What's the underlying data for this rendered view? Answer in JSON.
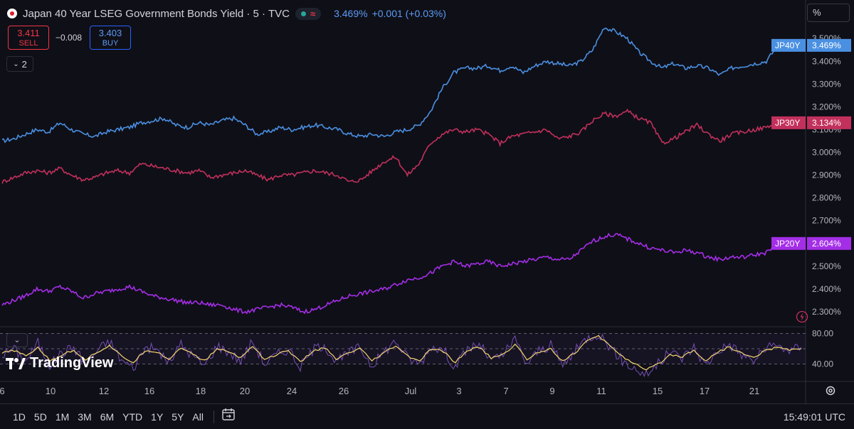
{
  "header": {
    "title": "Japan 40 Year LSEG Government Bonds Yield · 5 · TVC",
    "price": "3.469%",
    "change": "+0.001 (+0.03%)",
    "status_icons": [
      "market-open-dot",
      "delayed-data-wave"
    ]
  },
  "trade": {
    "sell_price": "3.411",
    "sell_label": "SELL",
    "spread": "−0.008",
    "buy_price": "3.403",
    "buy_label": "BUY"
  },
  "indicators_toggle": "2",
  "scale_mode": "%",
  "logo_text": "TradingView",
  "colors": {
    "jp40y": "#4a90e2",
    "jp30y": "#c2305c",
    "jp20y": "#a42ee8",
    "osc": "#7e57c2",
    "osc_signal": "#f5d76e",
    "background": "#0f0f17"
  },
  "chart_data": [
    {
      "type": "line",
      "y_ticks": [
        "3.500%",
        "3.400%",
        "3.300%",
        "3.200%",
        "3.100%",
        "3.000%",
        "2.900%",
        "2.800%",
        "2.700%",
        "2.600%",
        "2.500%",
        "2.400%",
        "2.300%"
      ],
      "ylim": [
        2.25,
        3.56
      ],
      "x_ticks": [
        "6",
        "10",
        "12",
        "16",
        "18",
        "20",
        "24",
        "26",
        "Jul",
        "3",
        "7",
        "9",
        "11",
        "15",
        "17",
        "21"
      ],
      "series": [
        {
          "name": "JP40Y",
          "last_label": "3.469%",
          "values": [
            3.05,
            3.06,
            3.08,
            3.1,
            3.09,
            3.13,
            3.1,
            3.08,
            3.07,
            3.09,
            3.1,
            3.11,
            3.13,
            3.14,
            3.15,
            3.12,
            3.11,
            3.13,
            3.12,
            3.14,
            3.15,
            3.12,
            3.08,
            3.09,
            3.11,
            3.1,
            3.11,
            3.12,
            3.11,
            3.1,
            3.08,
            3.07,
            3.08,
            3.07,
            3.09,
            3.1,
            3.12,
            3.18,
            3.28,
            3.35,
            3.37,
            3.37,
            3.38,
            3.36,
            3.38,
            3.35,
            3.38,
            3.4,
            3.39,
            3.38,
            3.4,
            3.45,
            3.55,
            3.53,
            3.5,
            3.44,
            3.4,
            3.37,
            3.39,
            3.37,
            3.38,
            3.37,
            3.34,
            3.37,
            3.38,
            3.39,
            3.4,
            3.47
          ]
        },
        {
          "name": "JP30Y",
          "last_label": "3.134%",
          "values": [
            2.87,
            2.89,
            2.91,
            2.92,
            2.91,
            2.93,
            2.9,
            2.88,
            2.89,
            2.91,
            2.92,
            2.91,
            2.95,
            2.94,
            2.93,
            2.92,
            2.91,
            2.92,
            2.89,
            2.9,
            2.91,
            2.92,
            2.9,
            2.88,
            2.9,
            2.9,
            2.91,
            2.92,
            2.91,
            2.9,
            2.87,
            2.88,
            2.92,
            2.96,
            2.98,
            2.9,
            2.95,
            3.04,
            3.08,
            3.1,
            3.09,
            3.1,
            3.08,
            3.04,
            3.07,
            3.08,
            3.09,
            3.1,
            3.06,
            3.07,
            3.09,
            3.14,
            3.17,
            3.16,
            3.18,
            3.15,
            3.13,
            3.04,
            3.06,
            3.09,
            3.12,
            3.08,
            3.05,
            3.08,
            3.09,
            3.1,
            3.11,
            3.13
          ]
        },
        {
          "name": "JP20Y",
          "last_label": "2.604%",
          "values": [
            2.33,
            2.35,
            2.37,
            2.4,
            2.39,
            2.41,
            2.39,
            2.36,
            2.38,
            2.39,
            2.4,
            2.41,
            2.39,
            2.37,
            2.36,
            2.35,
            2.34,
            2.34,
            2.33,
            2.33,
            2.31,
            2.3,
            2.31,
            2.32,
            2.33,
            2.32,
            2.3,
            2.31,
            2.33,
            2.35,
            2.37,
            2.38,
            2.39,
            2.4,
            2.42,
            2.44,
            2.45,
            2.47,
            2.5,
            2.52,
            2.5,
            2.51,
            2.52,
            2.5,
            2.51,
            2.52,
            2.53,
            2.54,
            2.53,
            2.53,
            2.57,
            2.61,
            2.63,
            2.64,
            2.62,
            2.6,
            2.58,
            2.57,
            2.56,
            2.57,
            2.56,
            2.54,
            2.53,
            2.54,
            2.54,
            2.55,
            2.56,
            2.6
          ]
        }
      ]
    },
    {
      "type": "line",
      "y_ticks": [
        "80.00",
        "40.00"
      ],
      "ylim": [
        20,
        86
      ],
      "series": [
        {
          "values": [
            52,
            60,
            44,
            68,
            38,
            55,
            62,
            40,
            58,
            70,
            45,
            35,
            62,
            58,
            42,
            66,
            50,
            38,
            64,
            56,
            44,
            70,
            40,
            52,
            60,
            36,
            58,
            66,
            42,
            54,
            62,
            38,
            56,
            70,
            48,
            40,
            64,
            58,
            36,
            60,
            66,
            44,
            52,
            72,
            40,
            58,
            64,
            38,
            56,
            74,
            80,
            62,
            44,
            34,
            26,
            40,
            56,
            48,
            62,
            38,
            58,
            66,
            52,
            44,
            60,
            64,
            58,
            62
          ]
        },
        {
          "values": [
            54,
            58,
            50,
            62,
            44,
            52,
            58,
            46,
            56,
            64,
            50,
            42,
            58,
            56,
            46,
            62,
            52,
            44,
            60,
            56,
            48,
            64,
            46,
            52,
            58,
            42,
            56,
            62,
            46,
            54,
            60,
            44,
            54,
            64,
            50,
            44,
            60,
            56,
            42,
            58,
            62,
            48,
            52,
            66,
            46,
            56,
            60,
            44,
            54,
            70,
            76,
            64,
            50,
            40,
            32,
            40,
            52,
            50,
            58,
            44,
            56,
            62,
            54,
            48,
            58,
            62,
            58,
            60
          ]
        }
      ]
    }
  ]
}
